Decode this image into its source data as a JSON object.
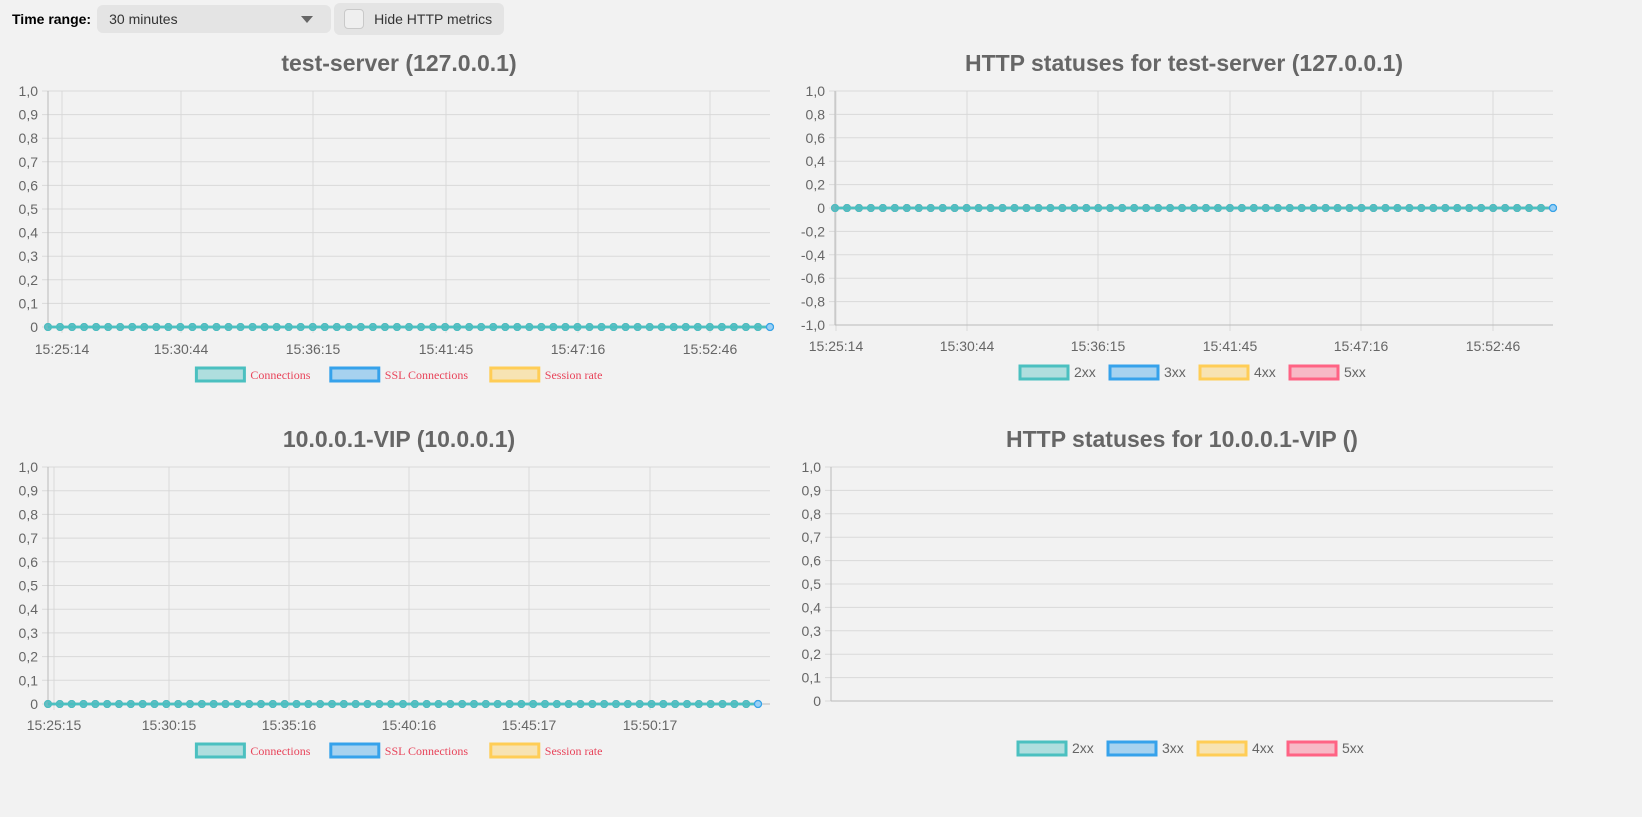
{
  "toolbar": {
    "time_range_label": "Time range:",
    "time_range_value": "30 minutes",
    "hide_http_label": "Hide HTTP metrics"
  },
  "colors": {
    "connections": "#4bc0c0",
    "ssl": "#36a2eb",
    "session": "#ffcd56",
    "s5xx": "#ff6384",
    "grid": "#d9d9d9",
    "axis": "#bbbbbb"
  },
  "chart_data": [
    {
      "type": "line",
      "title": "test-server (127.0.0.1)",
      "x_ticks": [
        "15:25:14",
        "15:30:44",
        "15:36:15",
        "15:41:45",
        "15:47:16",
        "15:52:46"
      ],
      "y_ticks": [
        "1,0",
        "0,9",
        "0,8",
        "0,7",
        "0,6",
        "0,5",
        "0,4",
        "0,3",
        "0,2",
        "0,1",
        "0"
      ],
      "ylim": [
        0,
        1
      ],
      "points_per_series": 61,
      "series": [
        {
          "name": "Connections",
          "value": 0
        },
        {
          "name": "SSL Connections",
          "value": 0
        },
        {
          "name": "Session rate",
          "value": 0
        }
      ],
      "legend_position": "bottom"
    },
    {
      "type": "line",
      "title": "HTTP statuses for test-server (127.0.0.1)",
      "x_ticks": [
        "15:25:14",
        "15:30:44",
        "15:36:15",
        "15:41:45",
        "15:47:16",
        "15:52:46"
      ],
      "y_ticks": [
        "1,0",
        "0,8",
        "0,6",
        "0,4",
        "0,2",
        "0",
        "-0,2",
        "-0,4",
        "-0,6",
        "-0,8",
        "-1,0"
      ],
      "ylim": [
        -1,
        1
      ],
      "points_per_series": 61,
      "series": [
        {
          "name": "2xx",
          "value": 0
        },
        {
          "name": "3xx",
          "value": 0
        },
        {
          "name": "4xx",
          "value": 0
        },
        {
          "name": "5xx",
          "value": 0
        }
      ],
      "legend_position": "bottom"
    },
    {
      "type": "line",
      "title": "10.0.0.1-VIP (10.0.0.1)",
      "x_ticks": [
        "15:25:15",
        "15:30:15",
        "15:35:16",
        "15:40:16",
        "15:45:17",
        "15:50:17"
      ],
      "y_ticks": [
        "1,0",
        "0,9",
        "0,8",
        "0,7",
        "0,6",
        "0,5",
        "0,4",
        "0,3",
        "0,2",
        "0,1",
        "0"
      ],
      "ylim": [
        0,
        1
      ],
      "points_per_series": 61,
      "series": [
        {
          "name": "Connections",
          "value": 0
        },
        {
          "name": "SSL Connections",
          "value": 0
        },
        {
          "name": "Session rate",
          "value": 0
        }
      ],
      "legend_position": "bottom"
    },
    {
      "type": "line",
      "title": "HTTP statuses for 10.0.0.1-VIP ()",
      "x_ticks": [],
      "y_ticks": [
        "1,0",
        "0,9",
        "0,8",
        "0,7",
        "0,6",
        "0,5",
        "0,4",
        "0,3",
        "0,2",
        "0,1",
        "0"
      ],
      "ylim": [
        0,
        1
      ],
      "points_per_series": 0,
      "series": [
        {
          "name": "2xx"
        },
        {
          "name": "3xx"
        },
        {
          "name": "4xx"
        },
        {
          "name": "5xx"
        }
      ],
      "legend_position": "bottom"
    }
  ]
}
